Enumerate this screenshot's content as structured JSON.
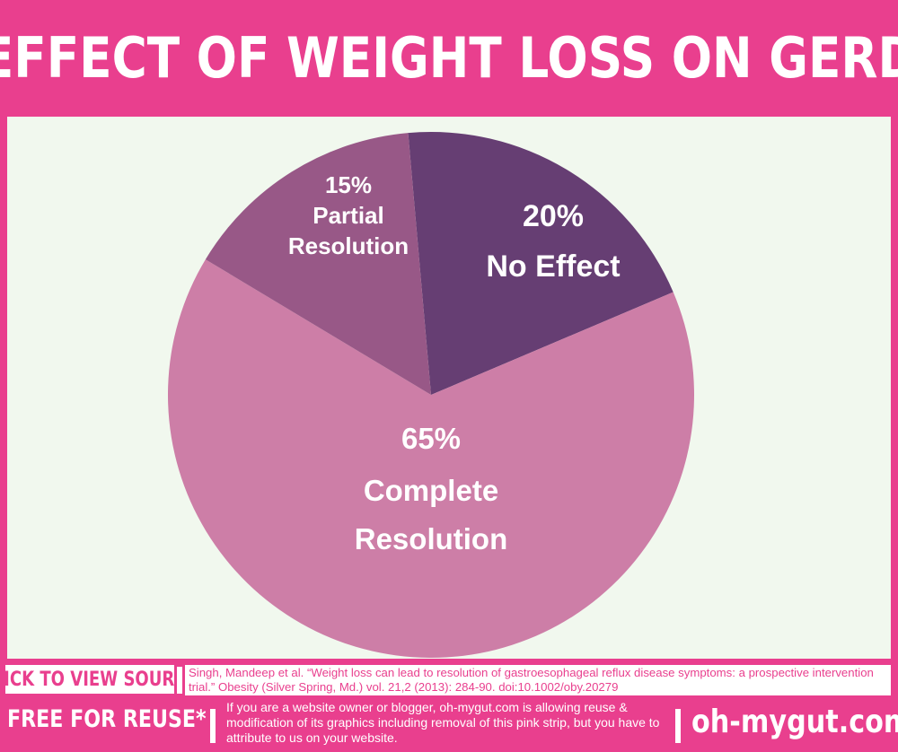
{
  "title": "EFFECT OF WEIGHT LOSS ON GERD",
  "chart_data": {
    "type": "pie",
    "slices": [
      {
        "percent_label": "20%",
        "name": "No Effect",
        "value": 20,
        "color": "#663e73"
      },
      {
        "percent_label": "65%",
        "name": "Complete Resolution",
        "value": 65,
        "color": "#cd7ea7"
      },
      {
        "percent_label": "15%",
        "name": "Partial Resolution",
        "value": 15,
        "color": "#985887"
      }
    ]
  },
  "source": {
    "button_label": "CLICK TO VIEW SOURCE",
    "citation": "Singh, Mandeep et al. “Weight loss can lead to resolution of gastroesophageal reflux disease symptoms: a prospective intervention trial.” Obesity (Silver Spring, Md.) vol. 21,2 (2013): 284-90. doi:10.1002/oby.20279"
  },
  "footer": {
    "free_label": "FREE FOR REUSE*",
    "notice": "If you are a website owner or blogger, oh-mygut.com is allowing reuse & modification of its graphics including removal of  this pink strip, but you have to attribute to us on your website.",
    "site": "oh-mygut.com"
  },
  "colors": {
    "brand_pink": "#e93f8e",
    "chart_background": "#f1f8ee"
  }
}
